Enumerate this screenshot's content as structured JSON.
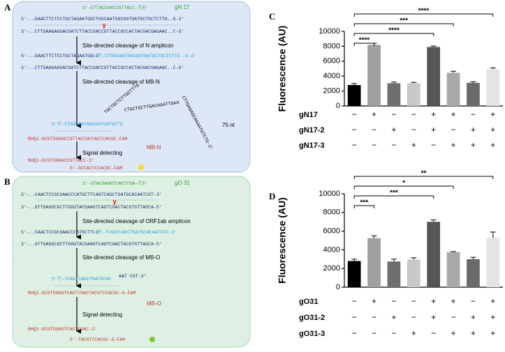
{
  "diagrams": [
    {
      "label": "A",
      "lines": [
        "3'-CTTACCGACCGTTACC-Ⓕ5'",
        "gN 17",
        "5'-..GAACTTCTCCTGCTAGAATGGCTGGCAATGGCGGTGATGCTGCTCTTG..G-3'",
        "3'-..CTTGAAGAGGACGATCTTACCGACCGTTACCGCCACTACGACGAGAAC..C-5'",
        "Site-directed cleavage of N amplicon",
        "5'-..GAACTTCTCCTGCTAGAATGG-3'",
        "5'Ⓕ-CTGGCAATGGCGGTGATGCTGCTCTTG..G-3'",
        "3'-..CTTGAAGAGGACGATCTTACCGACCGTTACCGCCACTACGACGAGAAC..C-5'",
        "Site-directed cleavage of MB-N",
        "TGCTGCTCTTGCTTTG",
        "CTGCTGCTTGACAGATTGAA",
        "CTTGAGAGCAAAATGTCTG-3'",
        "75 nt",
        "5'Ⓕ-CTGGCAATGGCGGTGATGCTG",
        "BHQ1-GCGTGGGACCGTTACCGCCACCCACGC-FAM",
        "MB-N",
        "Signal detecting",
        "BHQ1-GCGTGGGACCGTTACC-3'",
        "5'-GCCACTCCACGC-FAM"
      ]
    },
    {
      "label": "B",
      "lines": [
        "3'-GTACGAAGTCAGTCGA-Ⓕ5'",
        "gO 31",
        "5'-..CAACTCCGCGAACCCATGCTTCAGTCAGCTGATGCACAATCGT-3'",
        "3'-..GTTGAGGCGCTTGGGTACGAAGTCAGTCGACTACGTGTTAGCA-5'",
        "Site-directed cleavage of ORF1ab amplicon",
        "5'-..CAACTCCGCGAACCCATGCTT-3'",
        "5'Ⓕ-TCAGTCAGCTGATGCACAATCGT-3'",
        "3'-..GTTGAGGCGCTTGGGTACGAAGTCAGTCGACTACGTGTTAGCA-5'",
        "Site-directed cleavage of MB-O",
        "5'Ⓕ-TCAGTCAGCTGATGCAC",
        "AAT CGT-3'",
        "BHQ1-GCGTGGAGTCAGTCGACTACGTCCACGC-6-FAM",
        "MB-O",
        "Signal detecting",
        "BHQ1-GCGTGGAGTCAGTCGAC-3'",
        "5'-TACGTCCACGC-6-FAM"
      ]
    }
  ],
  "chart_data": [
    {
      "type": "bar",
      "panel_label": "C",
      "y_label": "Fluorescence (AU)",
      "categories": [
        null,
        null,
        null,
        null,
        null,
        null,
        null,
        null
      ],
      "values": [
        2800,
        8200,
        3050,
        3050,
        7900,
        4450,
        3100,
        4950
      ],
      "errors": [
        200,
        200,
        150,
        120,
        130,
        200,
        150,
        150
      ],
      "colors": [
        "#000000",
        "#a0a0a0",
        "#6e6e6e",
        "#c8c8c8",
        "#555555",
        "#a8a8a8",
        "#6a6a6a",
        "#e4e4e4"
      ],
      "ylim": [
        0,
        10000
      ],
      "yticks": [
        0,
        2000,
        4000,
        6000,
        8000,
        10000
      ],
      "conditions": [
        {
          "name": "gN17",
          "signs": [
            "−",
            "+",
            "−",
            "−",
            "+",
            "+",
            "−",
            "+"
          ]
        },
        {
          "name": "gN17-2",
          "signs": [
            "−",
            "−",
            "+",
            "−",
            "+",
            "−",
            "+",
            "+"
          ]
        },
        {
          "name": "gN17-3",
          "signs": [
            "−",
            "−",
            "−",
            "+",
            "−",
            "+",
            "+",
            "+"
          ]
        }
      ],
      "significance": [
        {
          "from": 0,
          "to": 1,
          "label": "****"
        },
        {
          "from": 0,
          "to": 4,
          "label": "****"
        },
        {
          "from": 0,
          "to": 5,
          "label": "***"
        },
        {
          "from": 0,
          "to": 7,
          "label": "****"
        }
      ]
    },
    {
      "type": "bar",
      "panel_label": "D",
      "y_label": "Fluorescence (AU)",
      "categories": [
        null,
        null,
        null,
        null,
        null,
        null,
        null,
        null
      ],
      "values": [
        2800,
        5250,
        2750,
        2950,
        7000,
        3750,
        3000,
        5300
      ],
      "errors": [
        200,
        250,
        250,
        200,
        200,
        60,
        200,
        600
      ],
      "colors": [
        "#000000",
        "#a0a0a0",
        "#6e6e6e",
        "#c8c8c8",
        "#555555",
        "#a8a8a8",
        "#6a6a6a",
        "#e4e4e4"
      ],
      "ylim": [
        0,
        10000
      ],
      "yticks": [
        0,
        2000,
        4000,
        6000,
        8000,
        10000
      ],
      "conditions": [
        {
          "name": "gO31",
          "signs": [
            "−",
            "+",
            "−",
            "−",
            "+",
            "+",
            "−",
            "+"
          ]
        },
        {
          "name": "gO31-2",
          "signs": [
            "−",
            "−",
            "+",
            "−",
            "+",
            "−",
            "+",
            "+"
          ]
        },
        {
          "name": "gO31-3",
          "signs": [
            "−",
            "−",
            "−",
            "+",
            "−",
            "+",
            "+",
            "+"
          ]
        }
      ],
      "significance": [
        {
          "from": 0,
          "to": 1,
          "label": "***"
        },
        {
          "from": 0,
          "to": 4,
          "label": "***"
        },
        {
          "from": 0,
          "to": 5,
          "label": "*"
        },
        {
          "from": 0,
          "to": 7,
          "label": "**"
        }
      ]
    }
  ]
}
